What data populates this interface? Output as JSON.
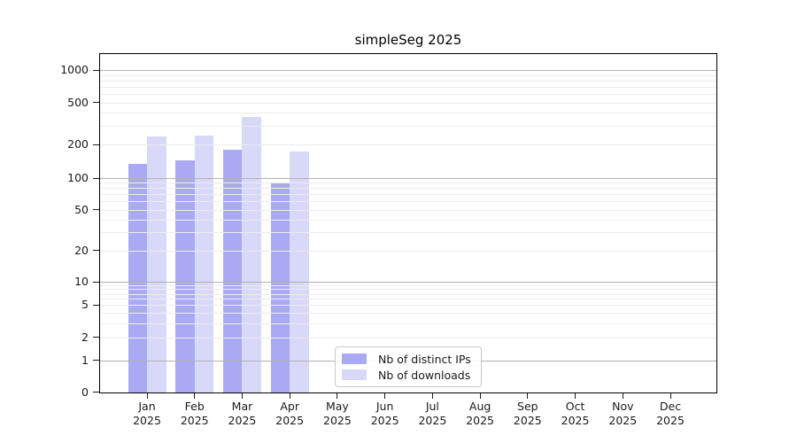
{
  "figure_title": "simpleSeg 2025",
  "chart_data": {
    "type": "bar",
    "title": "simpleSeg 2025",
    "categories": [
      "Jan",
      "Feb",
      "Mar",
      "Apr",
      "May",
      "Jun",
      "Jul",
      "Aug",
      "Sep",
      "Oct",
      "Nov",
      "Dec"
    ],
    "category_year": "2025",
    "series": [
      {
        "name": "Nb of distinct IPs",
        "color": "#a9a9f4",
        "values": [
          134,
          144,
          180,
          91,
          0,
          0,
          0,
          0,
          0,
          0,
          0,
          0
        ]
      },
      {
        "name": "Nb of downloads",
        "color": "#d8d8f8",
        "values": [
          238,
          245,
          365,
          175,
          0,
          0,
          0,
          0,
          0,
          0,
          0,
          0
        ]
      }
    ],
    "xlabel": "",
    "ylabel": "",
    "y_axis": {
      "scale": "log-like with zero baseline",
      "tick_values": [
        0,
        1,
        2,
        5,
        10,
        20,
        50,
        100,
        200,
        500,
        1000
      ],
      "tick_labels": [
        "0",
        "1",
        "2",
        "5",
        "10",
        "20",
        "50",
        "100",
        "200",
        "500",
        "1000"
      ]
    },
    "grid": {
      "enabled": true,
      "major_lines_at": [
        1,
        10,
        100,
        1000
      ],
      "minor_lines_per_decade": [
        2,
        3,
        4,
        5,
        6,
        7,
        8,
        9
      ],
      "major_color": "#b2b2b2",
      "minor_color": "#ececec"
    },
    "legend": {
      "position": "inside-bottom-center",
      "entries": [
        {
          "label": "Nb of distinct IPs",
          "color": "#a9a9f4"
        },
        {
          "label": "Nb of downloads",
          "color": "#d8d8f8"
        }
      ]
    }
  }
}
